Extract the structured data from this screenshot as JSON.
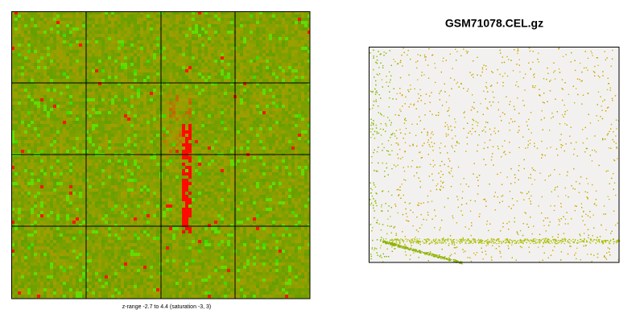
{
  "left_panel": {
    "caption": "z-range -2.7 to 4.4 (saturation -3, 3)"
  },
  "right_panel": {
    "title": "GSM71078.CEL.gz"
  }
}
